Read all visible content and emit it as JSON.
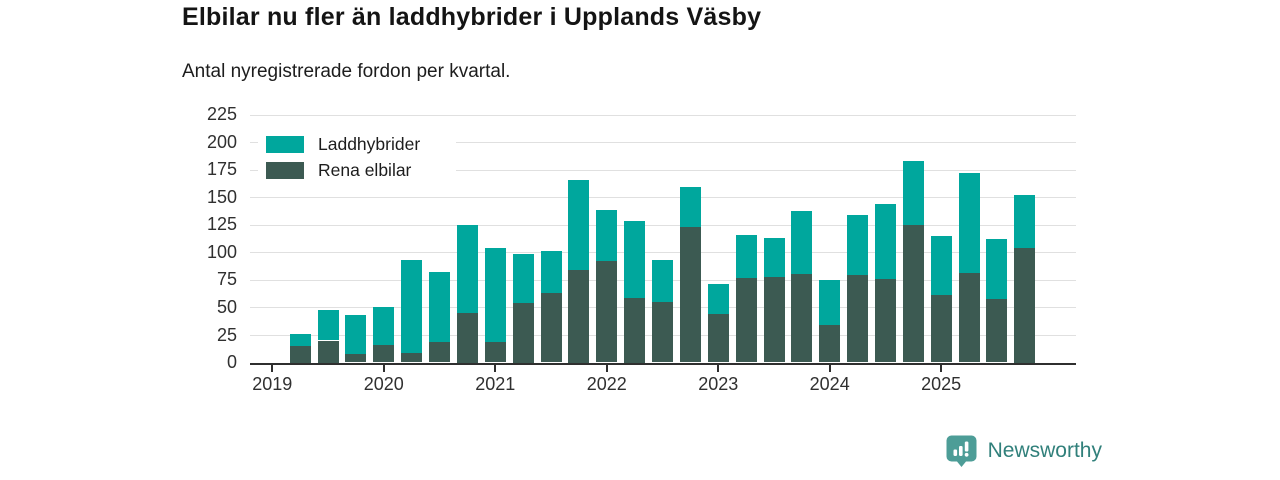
{
  "header": {
    "title": "Elbilar nu fler än laddhybrider i Upplands Väsby",
    "subtitle": "Antal nyregistrerade fordon per kvartal."
  },
  "chart_data": {
    "type": "bar",
    "stacked": true,
    "grid": true,
    "legend_position": "top-left",
    "title": "Elbilar nu fler än laddhybrider i Upplands Väsby",
    "subtitle": "Antal nyregistrerade fordon per kvartal.",
    "xlabel": "",
    "ylabel": "",
    "ylim": [
      0,
      225
    ],
    "yticks": [
      0,
      25,
      50,
      75,
      100,
      125,
      150,
      175,
      200,
      225
    ],
    "xticks": [
      {
        "label": "2019",
        "q": 0
      },
      {
        "label": "2020",
        "q": 4
      },
      {
        "label": "2021",
        "q": 8
      },
      {
        "label": "2022",
        "q": 12
      },
      {
        "label": "2023",
        "q": 16
      },
      {
        "label": "2024",
        "q": 20
      },
      {
        "label": "2025",
        "q": 24
      }
    ],
    "categories": [
      "2019 Q1",
      "2019 Q2",
      "2019 Q3",
      "2019 Q4",
      "2020 Q1",
      "2020 Q2",
      "2020 Q3",
      "2020 Q4",
      "2021 Q1",
      "2021 Q2",
      "2021 Q3",
      "2021 Q4",
      "2022 Q1",
      "2022 Q2",
      "2022 Q3",
      "2022 Q4",
      "2023 Q1",
      "2023 Q2",
      "2023 Q3",
      "2023 Q4",
      "2024 Q1",
      "2024 Q2",
      "2024 Q3",
      "2024 Q4",
      "2025 Q1",
      "2025 Q2",
      "2025 Q3",
      "2025 Q4"
    ],
    "series": [
      {
        "name": "Laddhybrider",
        "color": "#00a79d",
        "values": [
          0,
          11,
          28,
          35,
          34,
          84,
          63,
          80,
          85,
          45,
          38,
          82,
          47,
          70,
          38,
          36,
          27,
          39,
          35,
          58,
          41,
          54,
          68,
          58,
          54,
          91,
          54,
          48
        ]
      },
      {
        "name": "Rena elbilar",
        "color": "#3c5a52",
        "values": [
          0,
          15,
          20,
          8,
          16,
          9,
          19,
          45,
          19,
          54,
          63,
          84,
          92,
          59,
          55,
          123,
          44,
          77,
          78,
          80,
          34,
          80,
          76,
          125,
          61,
          81,
          58,
          104
        ]
      }
    ],
    "stack_order_bottom_to_top": [
      1,
      0
    ]
  },
  "footer": {
    "brand": "Newsworthy",
    "brand_color": "#31807b",
    "logo_color": "#4d9d97"
  }
}
